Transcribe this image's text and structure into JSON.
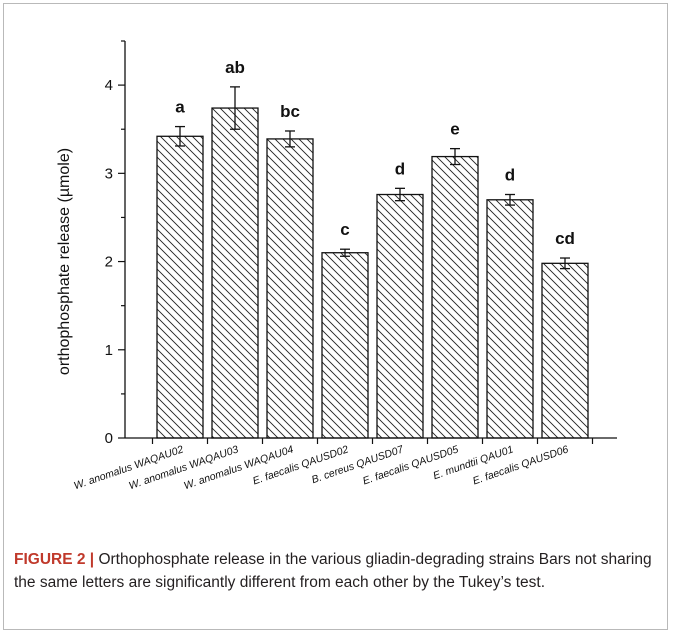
{
  "chart_data": {
    "type": "bar",
    "categories": [
      "W. anomalus WAQAU02",
      "W. anomalus WAQAU03",
      "W. anomalus WAQAU04",
      "E. faecalis QAUSD02",
      "B. cereus QAUSD07",
      "E. faecalis QAUSD05",
      "E. mundtii QAU01",
      "E. faecalis QAUSD06"
    ],
    "values": [
      3.42,
      3.74,
      3.39,
      2.1,
      2.76,
      3.19,
      2.7,
      1.98
    ],
    "errors": [
      0.11,
      0.24,
      0.09,
      0.04,
      0.07,
      0.09,
      0.06,
      0.06
    ],
    "letters": [
      "a",
      "ab",
      "bc",
      "c",
      "d",
      "e",
      "d",
      "cd"
    ],
    "ylabel": "orthophosphate release (µmole)",
    "xlabel": "",
    "ylim": [
      0,
      4.5
    ],
    "yticks": [
      0,
      1,
      2,
      3,
      4
    ],
    "bar_fill": "hatched",
    "grid": false
  },
  "caption": {
    "label": "FIGURE 2",
    "separator": "|",
    "text": " Orthophosphate release in the various gliadin-degrading strains Bars not sharing the same letters are significantly different from each other by the Tukey’s test."
  }
}
